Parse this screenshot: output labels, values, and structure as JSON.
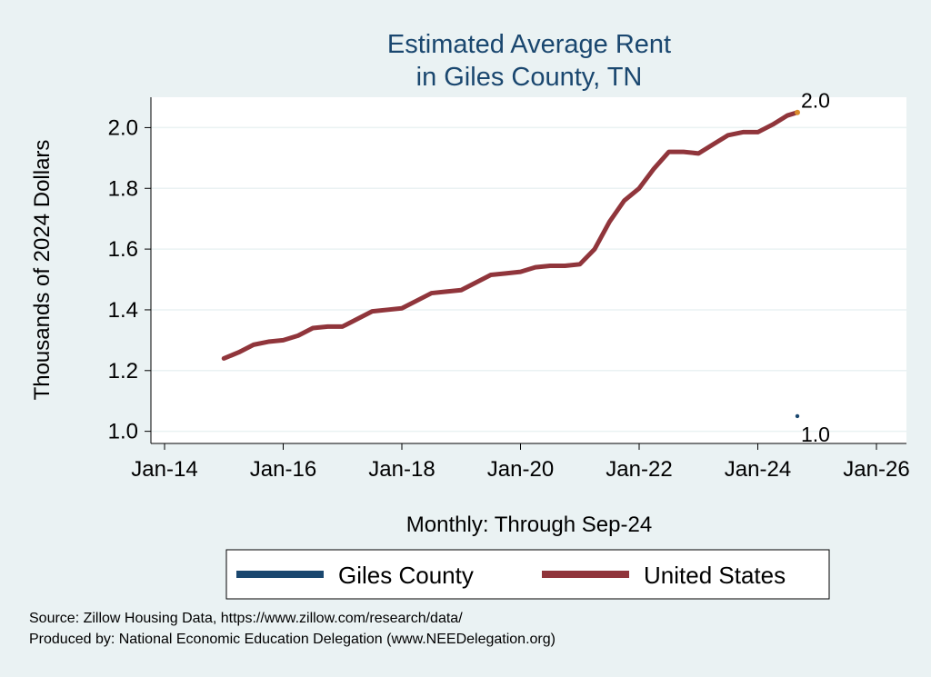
{
  "chart_data": {
    "type": "line",
    "title": [
      "Estimated Average Rent",
      "in Giles County, TN"
    ],
    "ylabel": "Thousands of 2024 Dollars",
    "xlabel": "Monthly: Through Sep-24",
    "ylim": [
      0.96,
      2.1
    ],
    "y_ticks": [
      1.0,
      1.2,
      1.4,
      1.6,
      1.8,
      2.0
    ],
    "y_tick_labels": [
      "1.0",
      "1.2",
      "1.4",
      "1.6",
      "1.8",
      "2.0"
    ],
    "x_ticks": [
      "2014-01",
      "2016-01",
      "2018-01",
      "2020-01",
      "2022-01",
      "2024-01",
      "2026-01"
    ],
    "x_tick_labels": [
      "Jan-14",
      "Jan-16",
      "Jan-18",
      "Jan-20",
      "Jan-22",
      "Jan-24",
      "Jan-26"
    ],
    "grid": true,
    "legend_position": "bottom",
    "series": [
      {
        "name": "Giles County",
        "color": "#1a476f",
        "values": [
          [
            "2024-09",
            1.05
          ]
        ],
        "end_label": "1.0"
      },
      {
        "name": "United States",
        "color": "#90353b",
        "values": [
          [
            "2015-01",
            1.24
          ],
          [
            "2015-04",
            1.26
          ],
          [
            "2015-07",
            1.285
          ],
          [
            "2015-10",
            1.295
          ],
          [
            "2016-01",
            1.3
          ],
          [
            "2016-04",
            1.315
          ],
          [
            "2016-07",
            1.34
          ],
          [
            "2016-10",
            1.345
          ],
          [
            "2017-01",
            1.345
          ],
          [
            "2017-04",
            1.37
          ],
          [
            "2017-07",
            1.395
          ],
          [
            "2017-10",
            1.4
          ],
          [
            "2018-01",
            1.405
          ],
          [
            "2018-04",
            1.43
          ],
          [
            "2018-07",
            1.455
          ],
          [
            "2018-10",
            1.46
          ],
          [
            "2019-01",
            1.465
          ],
          [
            "2019-04",
            1.49
          ],
          [
            "2019-07",
            1.515
          ],
          [
            "2019-10",
            1.52
          ],
          [
            "2020-01",
            1.525
          ],
          [
            "2020-04",
            1.54
          ],
          [
            "2020-07",
            1.545
          ],
          [
            "2020-10",
            1.545
          ],
          [
            "2021-01",
            1.55
          ],
          [
            "2021-04",
            1.6
          ],
          [
            "2021-07",
            1.69
          ],
          [
            "2021-10",
            1.76
          ],
          [
            "2022-01",
            1.8
          ],
          [
            "2022-04",
            1.865
          ],
          [
            "2022-07",
            1.92
          ],
          [
            "2022-10",
            1.92
          ],
          [
            "2023-01",
            1.915
          ],
          [
            "2023-04",
            1.945
          ],
          [
            "2023-07",
            1.975
          ],
          [
            "2023-10",
            1.985
          ],
          [
            "2024-01",
            1.985
          ],
          [
            "2024-04",
            2.01
          ],
          [
            "2024-07",
            2.04
          ],
          [
            "2024-09",
            2.05
          ]
        ],
        "end_label": "2.0"
      }
    ]
  },
  "footer": {
    "source": "Source: Zillow Housing Data, https://www.zillow.com/research/data/",
    "produced_by": "Produced by: National Economic Education Delegation (www.NEEDelegation.org)"
  }
}
